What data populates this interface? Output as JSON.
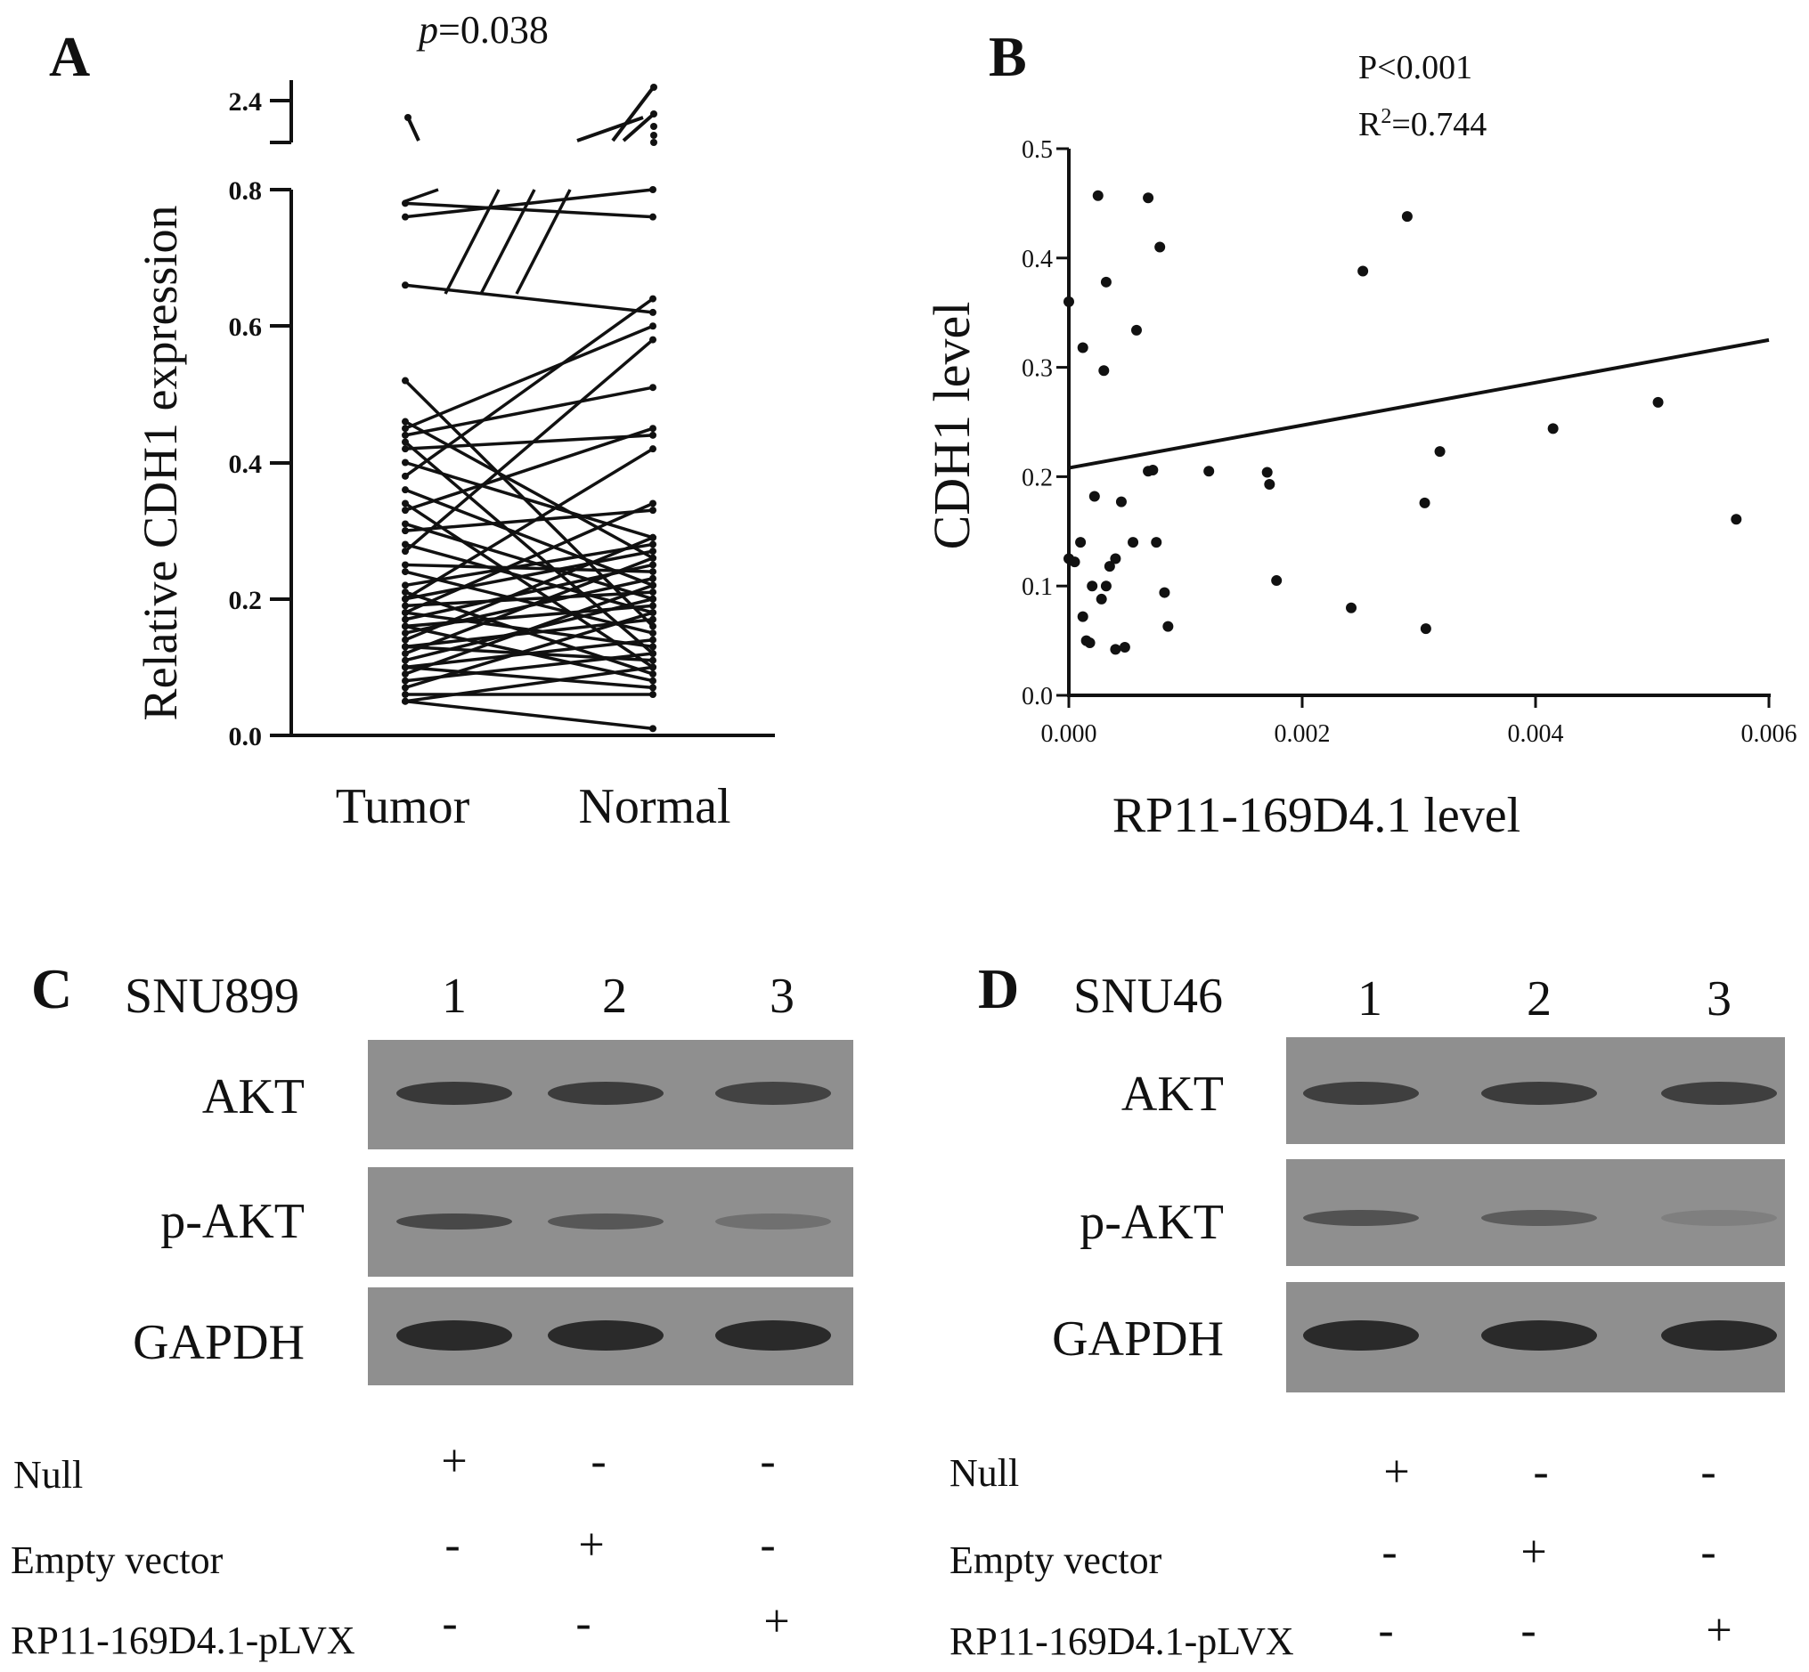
{
  "colors": {
    "ink": "#111111",
    "blot_bg": "#8f8f8f",
    "band": "#2a2a2a"
  },
  "panelA": {
    "letter": "A",
    "pvalue_italic": "p",
    "pvalue_rest": "=0.038",
    "ylabel": "Relative CDH1 expression",
    "yticks_lower": [
      "0.0",
      "0.2",
      "0.4",
      "0.6",
      "0.8"
    ],
    "ytick_upper": "2.4",
    "groups": [
      "Tumor",
      "Normal"
    ]
  },
  "panelB": {
    "letter": "B",
    "pvalue": "P<0.001",
    "r2_prefix": "R",
    "r2_sup": "2",
    "r2_rest": "=0.744",
    "ylabel": "CDH1 level",
    "xlabel": "RP11-169D4.1 level",
    "yticks": [
      "0.0",
      "0.1",
      "0.2",
      "0.3",
      "0.4",
      "0.5"
    ],
    "xticks": [
      "0.000",
      "0.002",
      "0.004",
      "0.006"
    ]
  },
  "panelC": {
    "letter": "C",
    "cell_line": "SNU899",
    "lanes": [
      "1",
      "2",
      "3"
    ],
    "rows": [
      "AKT",
      "p-AKT",
      "GAPDH"
    ],
    "conditions": [
      {
        "label": "Null",
        "signs": [
          "+",
          "-",
          "-"
        ]
      },
      {
        "label": "Empty vector",
        "signs": [
          "-",
          "+",
          "-"
        ]
      },
      {
        "label": "RP11-169D4.1-pLVX",
        "signs": [
          "-",
          "-",
          "+"
        ]
      }
    ],
    "band_intensity": {
      "AKT": [
        0.85,
        0.82,
        0.75
      ],
      "p-AKT": [
        0.7,
        0.55,
        0.3
      ],
      "GAPDH": [
        1.0,
        1.0,
        1.0
      ]
    }
  },
  "panelD": {
    "letter": "D",
    "cell_line": "SNU46",
    "lanes": [
      "1",
      "2",
      "3"
    ],
    "rows": [
      "AKT",
      "p-AKT",
      "GAPDH"
    ],
    "conditions": [
      {
        "label": "Null",
        "signs": [
          "+",
          "-",
          "-"
        ]
      },
      {
        "label": "Empty vector",
        "signs": [
          "-",
          "+",
          "-"
        ]
      },
      {
        "label": "RP11-169D4.1-pLVX",
        "signs": [
          "-",
          "-",
          "+"
        ]
      }
    ],
    "band_intensity": {
      "AKT": [
        0.8,
        0.82,
        0.8
      ],
      "p-AKT": [
        0.6,
        0.5,
        0.15
      ],
      "GAPDH": [
        1.0,
        1.0,
        1.0
      ]
    }
  },
  "chart_data": [
    {
      "type": "line",
      "panel": "A",
      "categories": [
        "Tumor",
        "Normal"
      ],
      "ylabel": "Relative CDH1 expression",
      "ylim": [
        0,
        0.8
      ],
      "upper_segment_tick": 2.4,
      "annotation": "p=0.038",
      "pairs": [
        [
          0.78,
          0.76
        ],
        [
          0.76,
          0.92
        ],
        [
          0.66,
          0.62
        ],
        [
          0.52,
          0.16
        ],
        [
          0.46,
          0.26
        ],
        [
          0.45,
          0.6
        ],
        [
          0.44,
          0.51
        ],
        [
          0.43,
          0.12
        ],
        [
          0.42,
          0.44
        ],
        [
          0.4,
          0.29
        ],
        [
          0.38,
          0.64
        ],
        [
          0.36,
          0.22
        ],
        [
          0.34,
          0.1
        ],
        [
          0.33,
          0.45
        ],
        [
          0.31,
          0.2
        ],
        [
          0.3,
          0.33
        ],
        [
          0.28,
          0.18
        ],
        [
          0.27,
          0.58
        ],
        [
          0.25,
          0.24
        ],
        [
          0.24,
          0.15
        ],
        [
          0.22,
          0.28
        ],
        [
          0.21,
          0.09
        ],
        [
          0.2,
          0.42
        ],
        [
          0.2,
          0.27
        ],
        [
          0.19,
          0.21
        ],
        [
          0.18,
          0.13
        ],
        [
          0.18,
          0.34
        ],
        [
          0.17,
          0.25
        ],
        [
          0.16,
          0.19
        ],
        [
          0.16,
          0.08
        ],
        [
          0.15,
          0.23
        ],
        [
          0.14,
          0.29
        ],
        [
          0.13,
          0.17
        ],
        [
          0.13,
          0.11
        ],
        [
          0.12,
          0.26
        ],
        [
          0.11,
          0.2
        ],
        [
          0.1,
          0.14
        ],
        [
          0.1,
          0.07
        ],
        [
          0.09,
          0.22
        ],
        [
          0.08,
          0.12
        ],
        [
          0.07,
          0.18
        ],
        [
          0.06,
          0.06
        ],
        [
          0.05,
          0.01
        ],
        [
          0.05,
          0.1
        ]
      ]
    },
    {
      "type": "scatter",
      "panel": "B",
      "xlabel": "RP11-169D4.1 level",
      "ylabel": "CDH1 level",
      "xlim": [
        0,
        0.006
      ],
      "ylim": [
        0,
        0.5
      ],
      "annotations": [
        "P<0.001",
        "R2=0.744"
      ],
      "fit_line": {
        "x": [
          0,
          0.006
        ],
        "y": [
          0.208,
          0.325
        ]
      },
      "points": [
        [
          0.0,
          0.36
        ],
        [
          0.0,
          0.125
        ],
        [
          5e-05,
          0.122
        ],
        [
          0.0001,
          0.14
        ],
        [
          0.00012,
          0.318
        ],
        [
          0.00012,
          0.072
        ],
        [
          0.00015,
          0.05
        ],
        [
          0.00018,
          0.048
        ],
        [
          0.0002,
          0.1
        ],
        [
          0.00022,
          0.182
        ],
        [
          0.00025,
          0.457
        ],
        [
          0.00028,
          0.088
        ],
        [
          0.0003,
          0.297
        ],
        [
          0.00032,
          0.378
        ],
        [
          0.00032,
          0.1
        ],
        [
          0.00035,
          0.118
        ],
        [
          0.0004,
          0.125
        ],
        [
          0.0004,
          0.042
        ],
        [
          0.00045,
          0.177
        ],
        [
          0.00048,
          0.044
        ],
        [
          0.00055,
          0.14
        ],
        [
          0.00058,
          0.334
        ],
        [
          0.00068,
          0.455
        ],
        [
          0.00068,
          0.205
        ],
        [
          0.00072,
          0.206
        ],
        [
          0.00075,
          0.14
        ],
        [
          0.00078,
          0.41
        ],
        [
          0.00082,
          0.094
        ],
        [
          0.00085,
          0.063
        ],
        [
          0.0012,
          0.205
        ],
        [
          0.0017,
          0.204
        ],
        [
          0.00172,
          0.193
        ],
        [
          0.00178,
          0.105
        ],
        [
          0.00242,
          0.08
        ],
        [
          0.00252,
          0.388
        ],
        [
          0.0029,
          0.438
        ],
        [
          0.00305,
          0.176
        ],
        [
          0.00306,
          0.061
        ],
        [
          0.00318,
          0.223
        ],
        [
          0.00415,
          0.244
        ],
        [
          0.00505,
          0.268
        ],
        [
          0.00572,
          0.161
        ]
      ]
    }
  ]
}
